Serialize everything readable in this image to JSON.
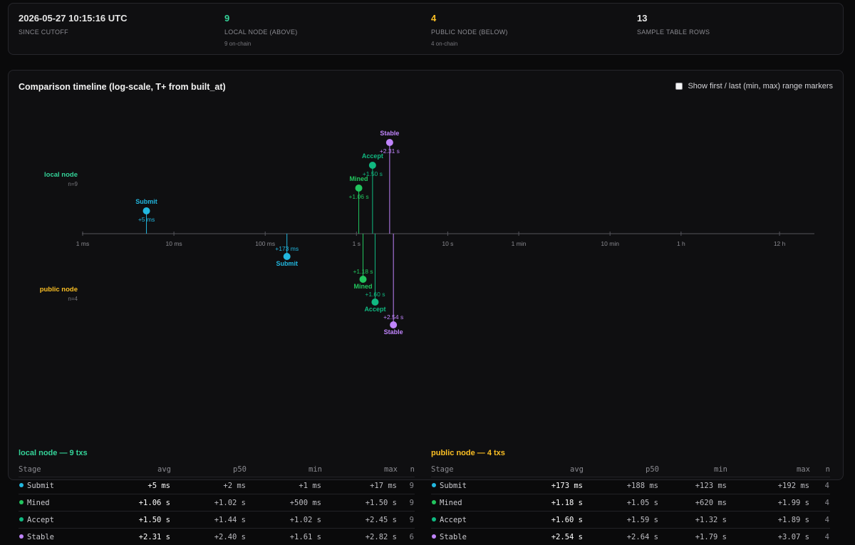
{
  "stats": [
    {
      "value": "2026-05-27 10:15:16 UTC",
      "label": "SINCE CUTOFF",
      "sub": "",
      "color": "#ffffff"
    },
    {
      "value": "9",
      "label": "LOCAL NODE (ABOVE)",
      "sub": "9 on-chain",
      "color": "#34d399"
    },
    {
      "value": "4",
      "label": "PUBLIC NODE (BELOW)",
      "sub": "4 on-chain",
      "color": "#fbbf24"
    },
    {
      "value": "13",
      "label": "SAMPLE TABLE ROWS",
      "sub": "",
      "color": "#ffffff"
    }
  ],
  "timeline": {
    "title": "Comparison timeline (log-scale, T+ from built_at)",
    "range_toggle_label": "Show first / last (min, max) range markers",
    "range_toggle_checked": false,
    "scale": "log",
    "ticks": [
      "1 ms",
      "10 ms",
      "100 ms",
      "1 s",
      "10 s",
      "1 min",
      "10 min",
      "1 h",
      "12 h"
    ],
    "tick_seconds": [
      0.001,
      0.01,
      0.1,
      1,
      10,
      60,
      600,
      3600,
      43200
    ],
    "stage_colors": {
      "Submit": "#22b8e0",
      "Mined": "#22c55e",
      "Accept": "#10b981",
      "Stable": "#c084fc"
    },
    "local": {
      "label": "local node",
      "n_label": "n=9",
      "color": "#34d399",
      "markers": [
        {
          "stage": "Submit",
          "seconds": 0.005,
          "label": "+5 ms"
        },
        {
          "stage": "Mined",
          "seconds": 1.06,
          "label": "+1.06 s"
        },
        {
          "stage": "Accept",
          "seconds": 1.5,
          "label": "+1.50 s"
        },
        {
          "stage": "Stable",
          "seconds": 2.31,
          "label": "+2.31 s"
        }
      ]
    },
    "public": {
      "label": "public node",
      "n_label": "n=4",
      "color": "#fbbf24",
      "markers": [
        {
          "stage": "Submit",
          "seconds": 0.173,
          "label": "+173 ms"
        },
        {
          "stage": "Mined",
          "seconds": 1.18,
          "label": "+1.18 s"
        },
        {
          "stage": "Accept",
          "seconds": 1.6,
          "label": "+1.60 s"
        },
        {
          "stage": "Stable",
          "seconds": 2.54,
          "label": "+2.54 s"
        }
      ]
    }
  },
  "tables": {
    "headers": {
      "stage": "Stage",
      "avg": "avg",
      "p50": "p50",
      "min": "min",
      "max": "max",
      "n": "n"
    },
    "local": {
      "title": "local node — 9 txs",
      "color": "#34d399",
      "rows": [
        {
          "stage": "Submit",
          "avg": "+5 ms",
          "p50": "+2 ms",
          "min": "+1 ms",
          "max": "+17 ms",
          "n": "9"
        },
        {
          "stage": "Mined",
          "avg": "+1.06 s",
          "p50": "+1.02 s",
          "min": "+500 ms",
          "max": "+1.50 s",
          "n": "9"
        },
        {
          "stage": "Accept",
          "avg": "+1.50 s",
          "p50": "+1.44 s",
          "min": "+1.02 s",
          "max": "+2.45 s",
          "n": "9"
        },
        {
          "stage": "Stable",
          "avg": "+2.31 s",
          "p50": "+2.40 s",
          "min": "+1.61 s",
          "max": "+2.82 s",
          "n": "6"
        }
      ]
    },
    "public": {
      "title": "public node — 4 txs",
      "color": "#fbbf24",
      "rows": [
        {
          "stage": "Submit",
          "avg": "+173 ms",
          "p50": "+188 ms",
          "min": "+123 ms",
          "max": "+192 ms",
          "n": "4"
        },
        {
          "stage": "Mined",
          "avg": "+1.18 s",
          "p50": "+1.05 s",
          "min": "+620 ms",
          "max": "+1.99 s",
          "n": "4"
        },
        {
          "stage": "Accept",
          "avg": "+1.60 s",
          "p50": "+1.59 s",
          "min": "+1.32 s",
          "max": "+1.89 s",
          "n": "4"
        },
        {
          "stage": "Stable",
          "avg": "+2.54 s",
          "p50": "+2.64 s",
          "min": "+1.79 s",
          "max": "+3.07 s",
          "n": "4"
        }
      ]
    }
  }
}
